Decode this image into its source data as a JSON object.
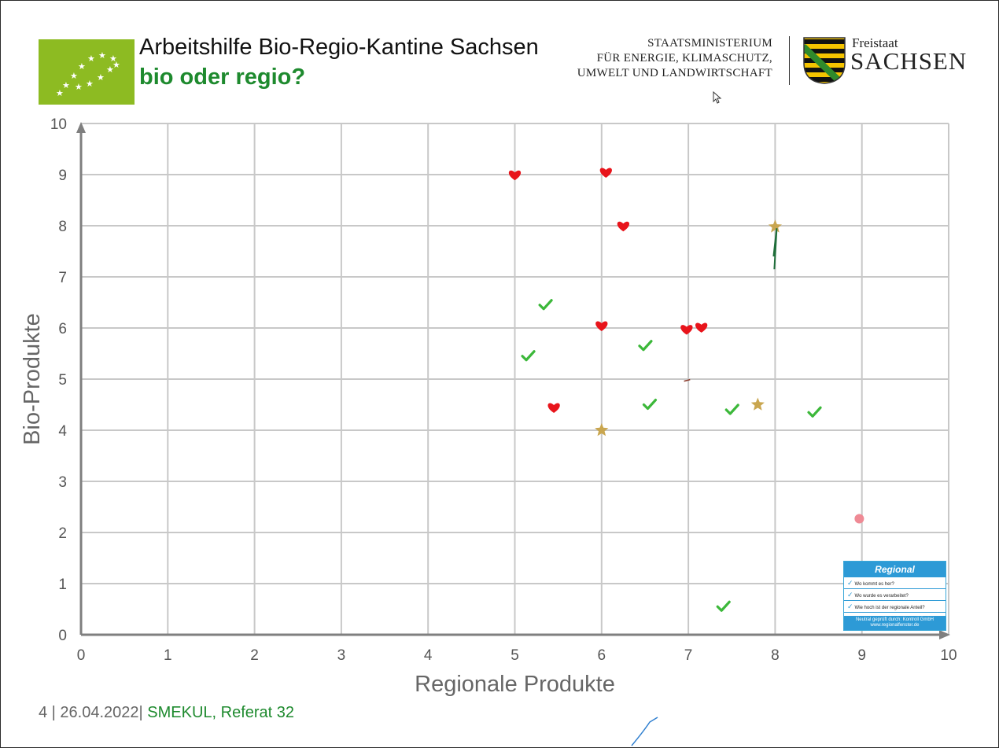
{
  "header": {
    "title": "Arbeitshilfe Bio-Regio-Kantine Sachsen",
    "subtitle": "bio oder regio?",
    "ministry_lines": [
      "STAATSMINISTERIUM",
      "FÜR ENERGIE, KLIMASCHUTZ,",
      "UMWELT UND LANDWIRTSCHAFT"
    ],
    "state_small": "Freistaat",
    "state_big": "SACHSEN"
  },
  "footer": {
    "page_date": "4 | 26.04.2022|",
    "org": " SMEKUL, Referat 32"
  },
  "regional_badge": {
    "title": "Regional",
    "items": [
      "Wo kommt es her?",
      "Wo wurde es verarbeitet?",
      "Wie hoch ist der regionale Anteil?"
    ],
    "footer_line1": "Neutral geprüft durch: Kontroll GmbH",
    "footer_line2": "www.regionalfenster.de"
  },
  "colors": {
    "eu_green": "#8dbb22",
    "accent_green": "#1e8a2e",
    "heart_red": "#e8141b",
    "check_green": "#3cb83a",
    "star_gold": "#c9a64f",
    "dot_pink": "#ef8a95",
    "grid": "#c8c8c8",
    "axis": "#7f7f7f"
  },
  "chart_data": {
    "type": "scatter",
    "xlabel": "Regionale Produkte",
    "ylabel": "Bio-Produkte",
    "xlim": [
      0,
      10
    ],
    "ylim": [
      0,
      10
    ],
    "xticks": [
      "0",
      "1",
      "2",
      "3",
      "4",
      "5",
      "6",
      "7",
      "8",
      "9",
      "10"
    ],
    "yticks": [
      "0",
      "1",
      "2",
      "3",
      "4",
      "5",
      "6",
      "7",
      "8",
      "9",
      "10"
    ],
    "grid": true,
    "series": [
      {
        "marker": "heart",
        "points": [
          [
            5.0,
            9.0
          ],
          [
            6.05,
            9.05
          ],
          [
            6.25,
            8.0
          ],
          [
            6.0,
            6.05
          ],
          [
            6.98,
            5.98
          ],
          [
            7.15,
            6.02
          ],
          [
            5.45,
            4.45
          ]
        ]
      },
      {
        "marker": "check",
        "points": [
          [
            5.35,
            6.45
          ],
          [
            5.15,
            5.45
          ],
          [
            6.5,
            5.65
          ],
          [
            6.55,
            4.5
          ],
          [
            7.5,
            4.4
          ],
          [
            8.45,
            4.35
          ],
          [
            7.4,
            0.55
          ]
        ]
      },
      {
        "marker": "star",
        "points": [
          [
            8.0,
            7.98
          ],
          [
            6.0,
            4.0
          ],
          [
            7.8,
            4.5
          ]
        ]
      },
      {
        "marker": "dot",
        "points": [
          [
            8.97,
            2.27
          ]
        ]
      }
    ]
  }
}
